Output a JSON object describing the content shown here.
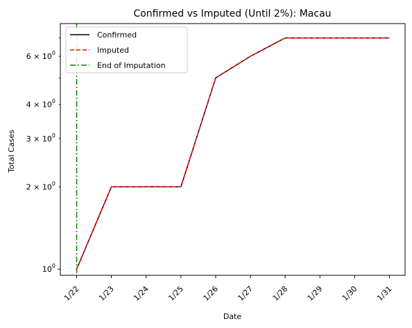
{
  "chart_data": {
    "type": "line",
    "title": "Confirmed vs Imputed (Until 2%): Macau",
    "xlabel": "Date",
    "ylabel": "Total Cases",
    "categories": [
      "1/22",
      "1/23",
      "1/24",
      "1/25",
      "1/26",
      "1/27",
      "1/28",
      "1/29",
      "1/30",
      "1/31"
    ],
    "series": [
      {
        "name": "Confirmed",
        "color": "#000000",
        "style": "solid",
        "values": [
          1,
          2,
          2,
          2,
          5,
          6,
          7,
          7,
          7,
          7
        ]
      },
      {
        "name": "Imputed",
        "color": "#ff0000",
        "style": "dashed",
        "values": [
          1,
          2,
          2,
          2,
          5,
          6,
          7,
          7,
          7,
          7
        ]
      }
    ],
    "vline": {
      "name": "End of Imputation",
      "x": "1/22",
      "color": "#008000",
      "style": "dashdot"
    },
    "y_scale": "log",
    "ylim": [
      0.95,
      7.9
    ],
    "y_major_ticks": [
      {
        "value": 1,
        "label_base": "10",
        "label_exp": "0"
      }
    ],
    "y_minor_ticks": [
      {
        "value": 2,
        "label_base": "2 × 10",
        "label_exp": "0"
      },
      {
        "value": 3,
        "label_base": "3 × 10",
        "label_exp": "0"
      },
      {
        "value": 4,
        "label_base": "4 × 10",
        "label_exp": "0"
      },
      {
        "value": 6,
        "label_base": "6 × 10",
        "label_exp": "0"
      }
    ],
    "y_minor_unlabeled": [
      5,
      7
    ],
    "grid": false,
    "legend_position": "top-left"
  }
}
